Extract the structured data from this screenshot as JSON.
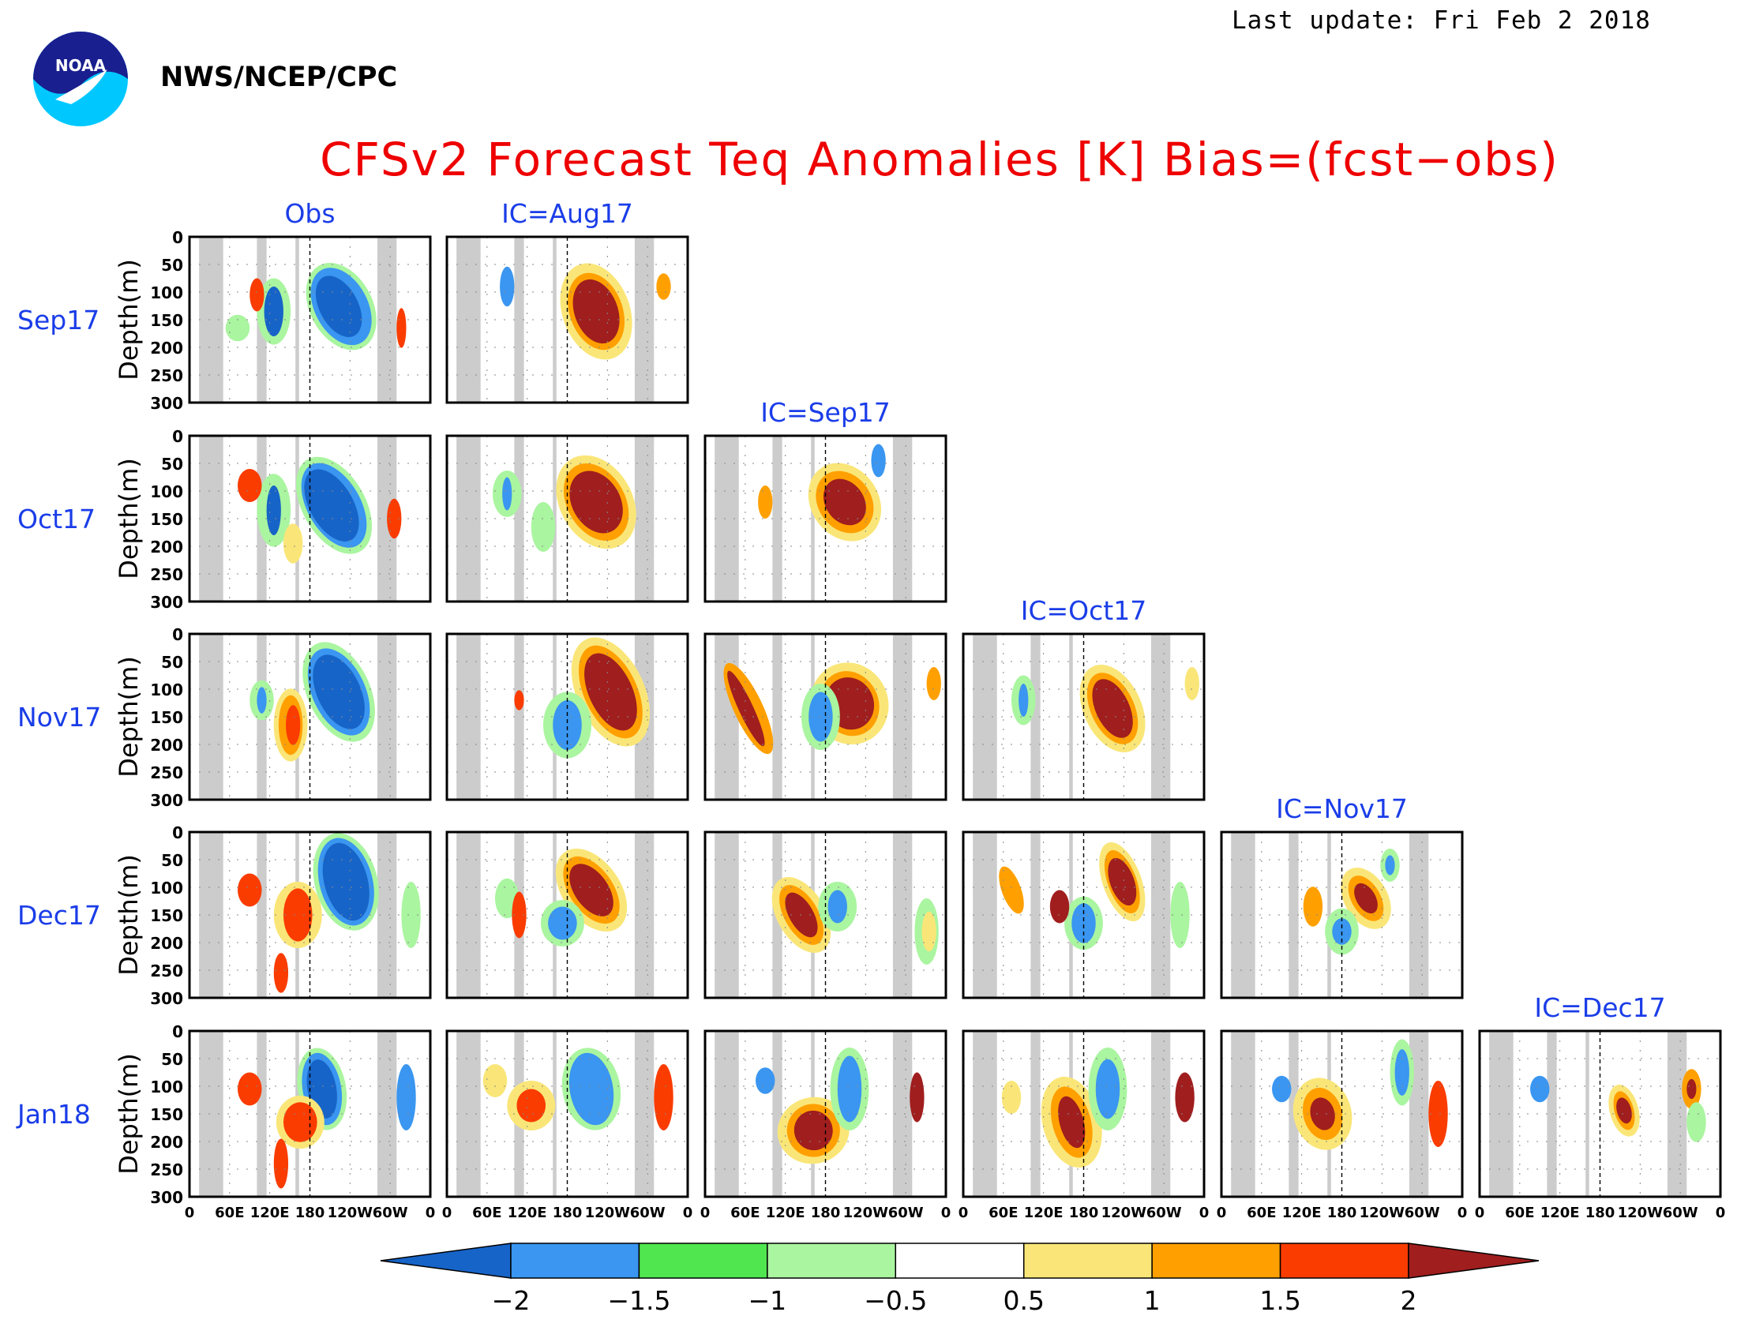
{
  "header": {
    "last_update": "Last update: Fri Feb  2 2018",
    "organization": "NWS/NCEP/CPC",
    "logo_text": "NOAA",
    "title": "CFSv2 Forecast Teq Anomalies [K] Bias=(fcst−obs)"
  },
  "chart_data": {
    "type": "heatmap",
    "title": "CFSv2 Forecast Teq Anomalies [K] Bias=(fcst−obs)",
    "ylabel": "Depth(m)",
    "y_ticks": [
      "0",
      "50",
      "100",
      "150",
      "200",
      "250",
      "300"
    ],
    "ylim": [
      300,
      0
    ],
    "x_ticks": [
      "0",
      "60E",
      "120E",
      "180",
      "120W",
      "60W",
      "0"
    ],
    "columns": [
      "Obs",
      "IC=Aug17",
      "IC=Sep17",
      "IC=Oct17",
      "IC=Nov17",
      "IC=Dec17"
    ],
    "rows": [
      "Sep17",
      "Oct17",
      "Nov17",
      "Dec17",
      "Jan18"
    ],
    "colorbar": {
      "ticks": [
        "−2",
        "−1.5",
        "−1",
        "−0.5",
        "0.5",
        "1",
        "1.5",
        "2"
      ],
      "colors": [
        "#1764c8",
        "#3a96f0",
        "#50e650",
        "#aaf5a0",
        "#ffffff",
        "#fae678",
        "#ffa000",
        "#fa3c00",
        "#a01e1e"
      ],
      "extend": "both"
    },
    "land_mask_color": "#cccccc"
  }
}
